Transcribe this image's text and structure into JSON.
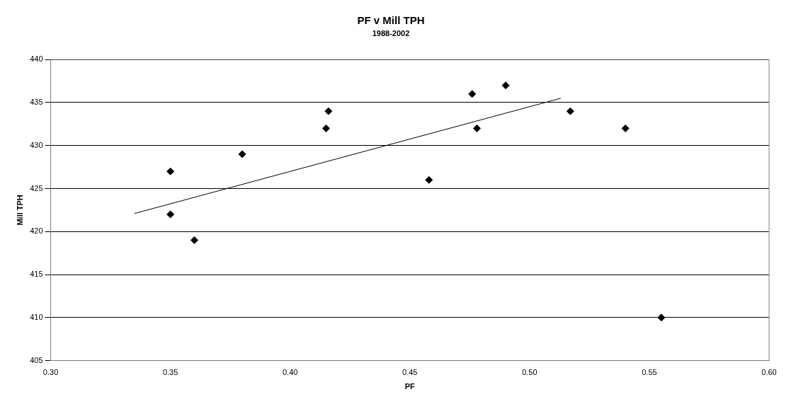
{
  "chart_data": {
    "type": "scatter",
    "title": "PF v Mill TPH",
    "subtitle": "1988-2002",
    "xlabel": "PF",
    "ylabel": "Mill TPH",
    "xlim": [
      0.3,
      0.6
    ],
    "xticks": [
      {
        "value": 0.3,
        "label": "0.30"
      },
      {
        "value": 0.35,
        "label": "0.35"
      },
      {
        "value": 0.4,
        "label": "0.40"
      },
      {
        "value": 0.45,
        "label": "0.45"
      },
      {
        "value": 0.5,
        "label": "0.50"
      },
      {
        "value": 0.55,
        "label": "0.55"
      },
      {
        "value": 0.6,
        "label": "0.60"
      }
    ],
    "ylim": [
      405,
      440
    ],
    "yticks": [
      405,
      410,
      415,
      420,
      425,
      430,
      435,
      440
    ],
    "grid": "y",
    "legend": false,
    "marker": "diamond",
    "series": [
      {
        "color": "#000000",
        "x": [
          0.35,
          0.35,
          0.36,
          0.38,
          0.415,
          0.416,
          0.458,
          0.476,
          0.478,
          0.49,
          0.517,
          0.54,
          0.555
        ],
        "values": [
          427,
          422,
          419,
          429,
          432,
          434,
          426,
          436,
          432,
          437,
          434,
          432,
          410
        ]
      },
      {
        "type": "line",
        "color": "#000000",
        "x": [
          0.335,
          0.513
        ],
        "values": [
          422.1,
          435.5
        ],
        "marker": "none"
      }
    ]
  }
}
